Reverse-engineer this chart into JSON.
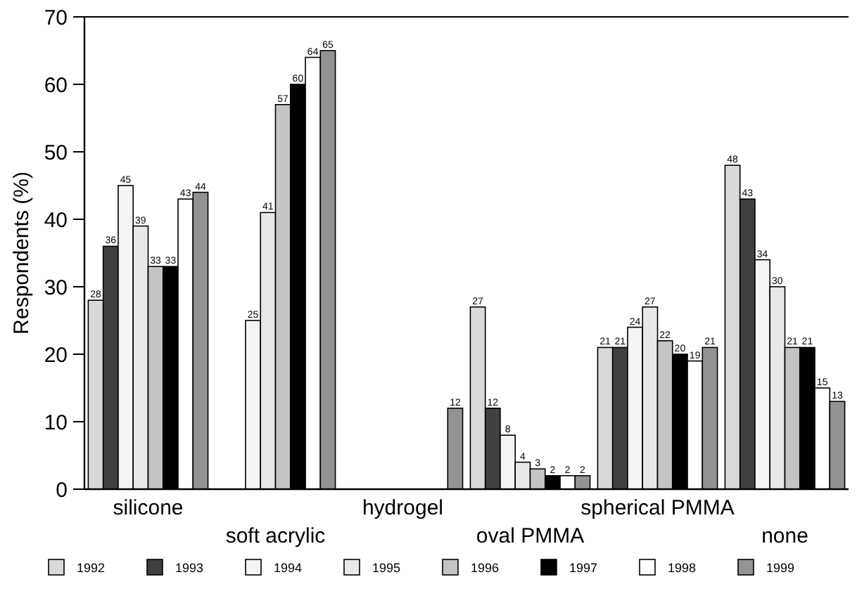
{
  "chart_data": {
    "type": "bar",
    "ylabel": "Respondents (%)",
    "categories": [
      "silicone",
      "soft acrylic",
      "hydrogel",
      "oval PMMA",
      "spherical PMMA",
      "none"
    ],
    "series": [
      {
        "name": "1992",
        "color": "#d9d9d9",
        "values": [
          28,
          null,
          null,
          27,
          21,
          48
        ]
      },
      {
        "name": "1993",
        "color": "#404040",
        "values": [
          36,
          null,
          null,
          12,
          21,
          43
        ]
      },
      {
        "name": "1994",
        "color": "#f4f4f4",
        "values": [
          45,
          25,
          null,
          8,
          24,
          34
        ]
      },
      {
        "name": "1995",
        "color": "#e8e8e8",
        "values": [
          39,
          41,
          null,
          4,
          27,
          30
        ]
      },
      {
        "name": "1996",
        "color": "#c4c4c4",
        "values": [
          33,
          57,
          null,
          3,
          22,
          21
        ]
      },
      {
        "name": "1997",
        "color": "#000000",
        "values": [
          33,
          60,
          null,
          2,
          20,
          21
        ]
      },
      {
        "name": "1998",
        "color": "#ffffff",
        "values": [
          43,
          64,
          null,
          2,
          19,
          15
        ]
      },
      {
        "name": "1999",
        "color": "#939393",
        "values": [
          44,
          65,
          12,
          2,
          21,
          13
        ]
      }
    ],
    "ylim": [
      0,
      70
    ],
    "yticks": [
      0,
      10,
      20,
      30,
      40,
      50,
      60,
      70
    ],
    "grid": false,
    "legend": "bottom",
    "data_labels": true
  }
}
